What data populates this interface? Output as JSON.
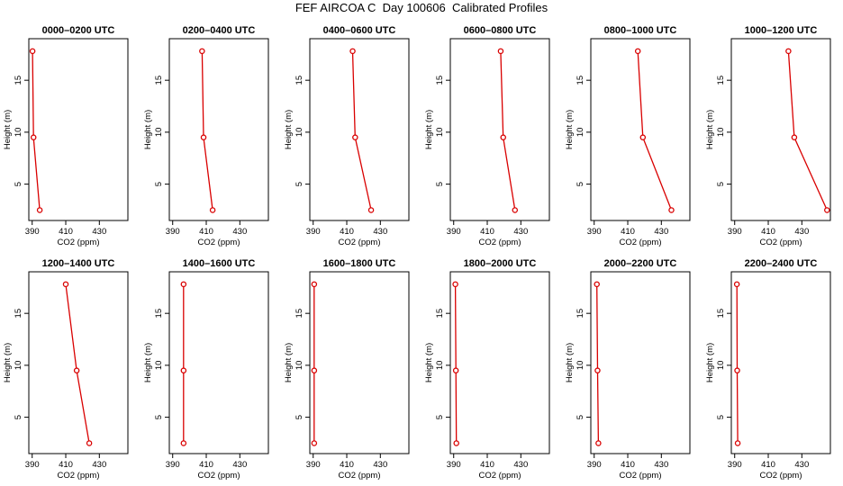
{
  "page": {
    "title": "FEF AIRCOA C  Day 100606  Calibrated Profiles"
  },
  "colors": {
    "series": "#d90000",
    "axis": "#000000",
    "background": "#ffffff"
  },
  "chart_data": {
    "type": "line",
    "title": "FEF AIRCOA C  Day 100606  Calibrated Profiles",
    "xlabel": "CO2 (ppm)",
    "ylabel": "Height (m)",
    "xlim": [
      388,
      447
    ],
    "ylim": [
      1.5,
      19
    ],
    "xticks": [
      390,
      410,
      430
    ],
    "yticks": [
      5,
      10,
      15
    ],
    "heights": [
      2.5,
      9.5,
      17.8
    ],
    "panels": [
      {
        "title": "0000–0200 UTC",
        "co2": [
          394.5,
          390.8,
          390.2
        ]
      },
      {
        "title": "0200–0400 UTC",
        "co2": [
          413.8,
          408.4,
          407.5
        ]
      },
      {
        "title": "0400–0600 UTC",
        "co2": [
          424.5,
          415.0,
          413.5
        ]
      },
      {
        "title": "0600–0800 UTC",
        "co2": [
          426.5,
          419.5,
          418.0
        ]
      },
      {
        "title": "0800–1000 UTC",
        "co2": [
          436.0,
          419.0,
          416.0
        ]
      },
      {
        "title": "1000–1200 UTC",
        "co2": [
          445.0,
          425.5,
          422.0
        ]
      },
      {
        "title": "1200–1400 UTC",
        "co2": [
          424.0,
          416.5,
          410.0
        ]
      },
      {
        "title": "1400–1600 UTC",
        "co2": [
          396.5,
          396.5,
          396.5
        ]
      },
      {
        "title": "1600–1800 UTC",
        "co2": [
          390.6,
          390.6,
          390.6
        ]
      },
      {
        "title": "1800–2000 UTC",
        "co2": [
          391.6,
          391.3,
          391.0
        ]
      },
      {
        "title": "2000–2200 UTC",
        "co2": [
          392.5,
          392.0,
          391.6
        ]
      },
      {
        "title": "2200–2400 UTC",
        "co2": [
          391.8,
          391.5,
          391.3
        ]
      }
    ]
  }
}
